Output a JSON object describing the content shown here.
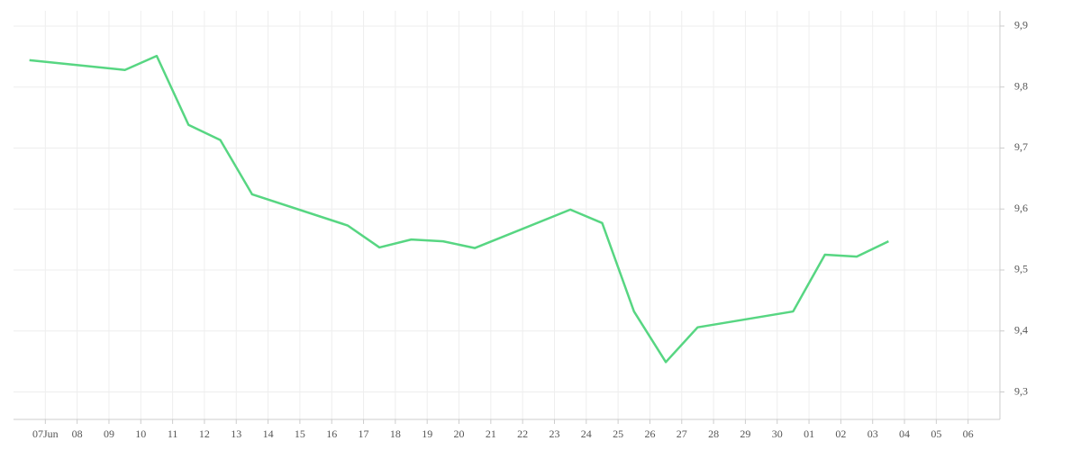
{
  "chart_data": {
    "type": "line",
    "xlim": [
      -1,
      30
    ],
    "xticks": [
      {
        "value": 0,
        "label": "07Jun"
      },
      {
        "value": 1,
        "label": "08"
      },
      {
        "value": 2,
        "label": "09"
      },
      {
        "value": 3,
        "label": "10"
      },
      {
        "value": 4,
        "label": "11"
      },
      {
        "value": 5,
        "label": "12"
      },
      {
        "value": 6,
        "label": "13"
      },
      {
        "value": 7,
        "label": "14"
      },
      {
        "value": 8,
        "label": "15"
      },
      {
        "value": 9,
        "label": "16"
      },
      {
        "value": 10,
        "label": "17"
      },
      {
        "value": 11,
        "label": "18"
      },
      {
        "value": 12,
        "label": "19"
      },
      {
        "value": 13,
        "label": "20"
      },
      {
        "value": 14,
        "label": "21"
      },
      {
        "value": 15,
        "label": "22"
      },
      {
        "value": 16,
        "label": "23"
      },
      {
        "value": 17,
        "label": "24"
      },
      {
        "value": 18,
        "label": "25"
      },
      {
        "value": 19,
        "label": "26"
      },
      {
        "value": 20,
        "label": "27"
      },
      {
        "value": 21,
        "label": "28"
      },
      {
        "value": 22,
        "label": "29"
      },
      {
        "value": 23,
        "label": "30"
      },
      {
        "value": 24,
        "label": "01"
      },
      {
        "value": 25,
        "label": "02"
      },
      {
        "value": 26,
        "label": "03"
      },
      {
        "value": 27,
        "label": "04"
      },
      {
        "value": 28,
        "label": "05"
      },
      {
        "value": 29,
        "label": "06"
      }
    ],
    "ylim": [
      9.255,
      9.925
    ],
    "yticks": [
      {
        "value": 9.3,
        "label": "9,3"
      },
      {
        "value": 9.4,
        "label": "9,4"
      },
      {
        "value": 9.5,
        "label": "9,5"
      },
      {
        "value": 9.6,
        "label": "9,6"
      },
      {
        "value": 9.7,
        "label": "9,7"
      },
      {
        "value": 9.8,
        "label": "9,8"
      },
      {
        "value": 9.9,
        "label": "9,9"
      }
    ],
    "grid": true,
    "x": [
      -0.5,
      2.5,
      3.5,
      4.5,
      5.5,
      6.5,
      9.5,
      10.5,
      11.5,
      12.5,
      13.5,
      16.5,
      17.5,
      18.5,
      19.5,
      20.5,
      23.5,
      24.5,
      25.5,
      26.5
    ],
    "series": [
      {
        "color": "#57d682",
        "values": [
          9.844,
          9.828,
          9.851,
          9.738,
          9.713,
          9.624,
          9.573,
          9.537,
          9.55,
          9.547,
          9.536,
          9.599,
          9.577,
          9.432,
          9.349,
          9.406,
          9.432,
          9.525,
          9.522,
          9.547
        ]
      }
    ]
  }
}
